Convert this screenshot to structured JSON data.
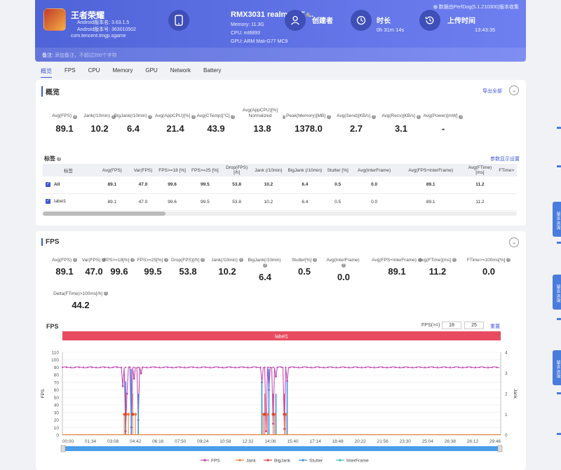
{
  "header": {
    "app_name": "王者荣耀",
    "android_ver": "Android版本名: 3.63.1.5",
    "android_code": "Android版本号: 363010502",
    "package": "com.tencent.tmgp.sgame",
    "device_name": "RMX3031 realme GT ...",
    "memory": "Memory: 11.3G",
    "cpu": "CPU: mt6893",
    "gpu": "GPU: ARM Mali-G77 MC9",
    "creator_label": "创建者",
    "duration_label": "时长",
    "duration_value": "0h 31m 14s",
    "upload_label": "上传时间",
    "upload_value": "13:43:35",
    "version": "数据由PerfDog(5.1.210300)版本收集",
    "note_label": "备注:",
    "note_placeholder": "添加备注，不超过200个字符"
  },
  "tabs": [
    "概览",
    "FPS",
    "CPU",
    "Memory",
    "GPU",
    "Network",
    "Battery"
  ],
  "overview": {
    "title": "概览",
    "export": "导出全部",
    "stats": [
      {
        "label": "Avg(FPS)",
        "value": "89.1"
      },
      {
        "label": "Jank(/10min)",
        "value": "10.2"
      },
      {
        "label": "BigJank(/10min)",
        "value": "6.4"
      },
      {
        "label": "Avg(AppCPU)[%]",
        "value": "21.4"
      },
      {
        "label": "Avg(CTemp)[°C]",
        "value": "43.9"
      },
      {
        "label": "Avg(AppCPU)[%] Normalized",
        "value": "13.8"
      },
      {
        "label": "Peak(Memory)[MB]",
        "value": "1378.0"
      },
      {
        "label": "Avg(Send)[KB/s]",
        "value": "2.7"
      },
      {
        "label": "Avg(Recv)[KB/s]",
        "value": "3.1"
      },
      {
        "label": "Avg(Power)[mW]",
        "value": "-"
      }
    ],
    "labels_title": "标签",
    "param_settings": "参数显示设置",
    "columns": [
      "标签",
      "Avg(FPS)",
      "Var(FPS)",
      "FPS>=18 [%]",
      "FPS>=25 [%]",
      "Drop(FPS) [/h]",
      "Jank (/10min)",
      "BigJank (/10min)",
      "Stutter [%]",
      "Avg(InterFrame)",
      "Avg(FPS+InterFrame)",
      "Avg(FTime) [ms]",
      "FTime>"
    ],
    "rows": [
      [
        "All",
        "89.1",
        "47.0",
        "99.6",
        "99.5",
        "53.8",
        "10.2",
        "6.4",
        "0.5",
        "0.0",
        "89.1",
        "11.2",
        ""
      ],
      [
        "label1",
        "89.1",
        "47.0",
        "99.6",
        "99.5",
        "53.8",
        "10.2",
        "6.4",
        "0.5",
        "0.0",
        "89.1",
        "11.2",
        ""
      ]
    ]
  },
  "fps_section": {
    "title": "FPS",
    "stats": [
      {
        "label": "Avg(FPS)",
        "value": "89.1"
      },
      {
        "label": "Var(FPS)",
        "value": "47.0"
      },
      {
        "label": "FPS>=18[%]",
        "value": "99.6"
      },
      {
        "label": "FPS>=25[%]",
        "value": "99.5"
      },
      {
        "label": "Drop(FPS)[/h]",
        "value": "53.8"
      },
      {
        "label": "Jank(/10min)",
        "value": "10.2"
      },
      {
        "label": "BigJank(/10min)",
        "value": "6.4"
      },
      {
        "label": "Stutter[%]",
        "value": "0.5"
      },
      {
        "label": "Avg(InterFrame)",
        "value": "0.0"
      },
      {
        "label": "Avg(FPS+InterFrame)",
        "value": "89.1"
      },
      {
        "label": "Avg(FTime)[ms]",
        "value": "11.2"
      },
      {
        "label": "FTime>=100ms[%]",
        "value": "0.0"
      }
    ],
    "delta_label": "Delta(FTime)>100ms[/h]",
    "delta_value": "44.2",
    "chart_title": "FPS",
    "fps_threshold_label": "FPS(>=)",
    "fps_threshold_1": "18",
    "fps_threshold_2": "25",
    "reset": "重置",
    "band_label": "label1"
  },
  "side_buttons": [
    "留言·咨询",
    "留言·咨询",
    "留言·咨询"
  ],
  "chart_data": {
    "type": "line",
    "title": "FPS",
    "xlabel": "",
    "ylabel": "FPS",
    "y2label": "Jank",
    "ylim": [
      0,
      110
    ],
    "y2lim": [
      0,
      4
    ],
    "x_ticks": [
      "00:00",
      "01:34",
      "03:08",
      "04:42",
      "06:16",
      "07:50",
      "09:24",
      "10:58",
      "12:32",
      "14:06",
      "15:40",
      "17:14",
      "18:48",
      "20:22",
      "21:56",
      "23:30",
      "25:04",
      "26:38",
      "28:12",
      "29:46"
    ],
    "y_ticks": [
      0,
      10,
      20,
      30,
      40,
      50,
      60,
      70,
      80,
      90,
      100,
      110
    ],
    "y2_ticks": [
      0,
      1,
      2,
      3,
      4
    ],
    "series": [
      {
        "name": "FPS",
        "color": "#c03fb0",
        "baseline": 90,
        "dips": [
          [
            4.3,
            65
          ],
          [
            4.5,
            5
          ],
          [
            4.6,
            55
          ],
          [
            4.9,
            10
          ],
          [
            5.1,
            75
          ],
          [
            5.4,
            20
          ],
          [
            5.6,
            82
          ],
          [
            14.2,
            70
          ],
          [
            14.5,
            5
          ],
          [
            14.7,
            60
          ],
          [
            15.0,
            15
          ],
          [
            15.2,
            78
          ],
          [
            15.8,
            8
          ],
          [
            16.0,
            72
          ]
        ]
      },
      {
        "name": "Jank",
        "color": "#f08030",
        "events": [
          4.4,
          4.7,
          5.2,
          14.3,
          14.6,
          15.1,
          15.9
        ]
      },
      {
        "name": "BigJank",
        "color": "#e04040",
        "events": [
          4.5,
          5.0,
          14.4,
          15.0,
          15.8
        ]
      },
      {
        "name": "Stutter",
        "color": "#3a8ee6"
      },
      {
        "name": "InterFrame",
        "color": "#40c0c0"
      }
    ]
  }
}
